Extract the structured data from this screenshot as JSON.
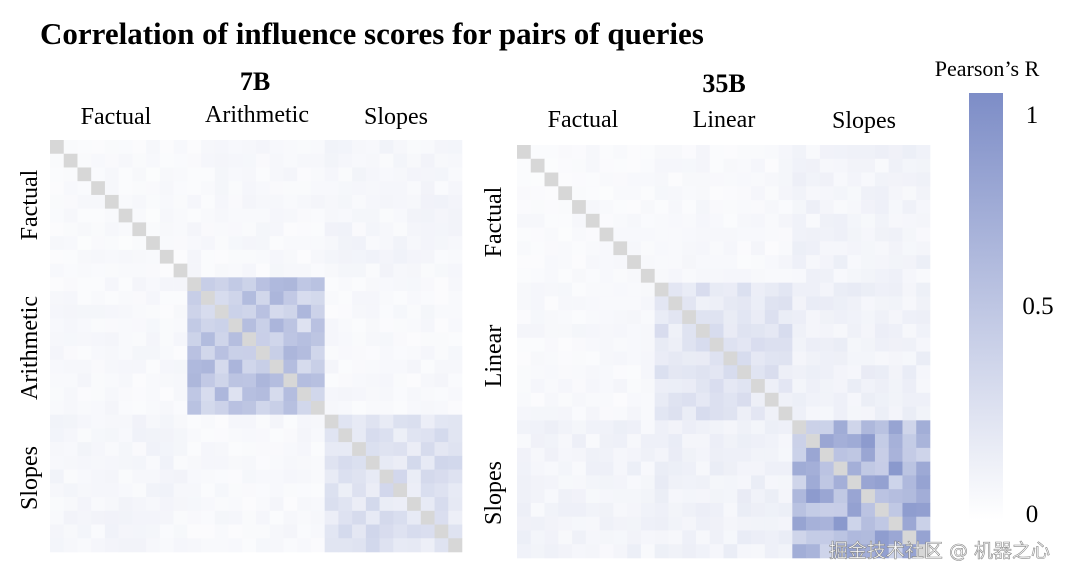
{
  "title": "Correlation of influence scores for pairs of queries",
  "watermark": "掘金技术社区 @ 机器之心",
  "colorbar": {
    "label": "Pearson’s R",
    "ticks": [
      "1",
      "0.5",
      "0"
    ],
    "range": [
      0,
      1
    ],
    "colors": {
      "low": "#ffffff",
      "high": "#7d8dc7",
      "diagonal": "#d7d7d7"
    }
  },
  "chart_data": [
    {
      "type": "heatmap",
      "title": "7B",
      "groups": [
        {
          "label": "Factual",
          "size": 10
        },
        {
          "label": "Arithmetic",
          "size": 10
        },
        {
          "label": "Slopes",
          "size": 10
        }
      ],
      "value_range": [
        0,
        1
      ],
      "diagonal": 1,
      "block_means": [
        [
          0.05,
          0.06,
          0.08
        ],
        [
          0.06,
          0.45,
          0.06
        ],
        [
          0.08,
          0.06,
          0.25
        ]
      ]
    },
    {
      "type": "heatmap",
      "title": "35B",
      "groups": [
        {
          "label": "Factual",
          "size": 10
        },
        {
          "label": "Linear",
          "size": 10
        },
        {
          "label": "Slopes",
          "size": 10
        }
      ],
      "value_range": [
        0,
        1
      ],
      "diagonal": 1,
      "block_means": [
        [
          0.05,
          0.06,
          0.1
        ],
        [
          0.06,
          0.22,
          0.12
        ],
        [
          0.1,
          0.12,
          0.65
        ]
      ]
    }
  ]
}
